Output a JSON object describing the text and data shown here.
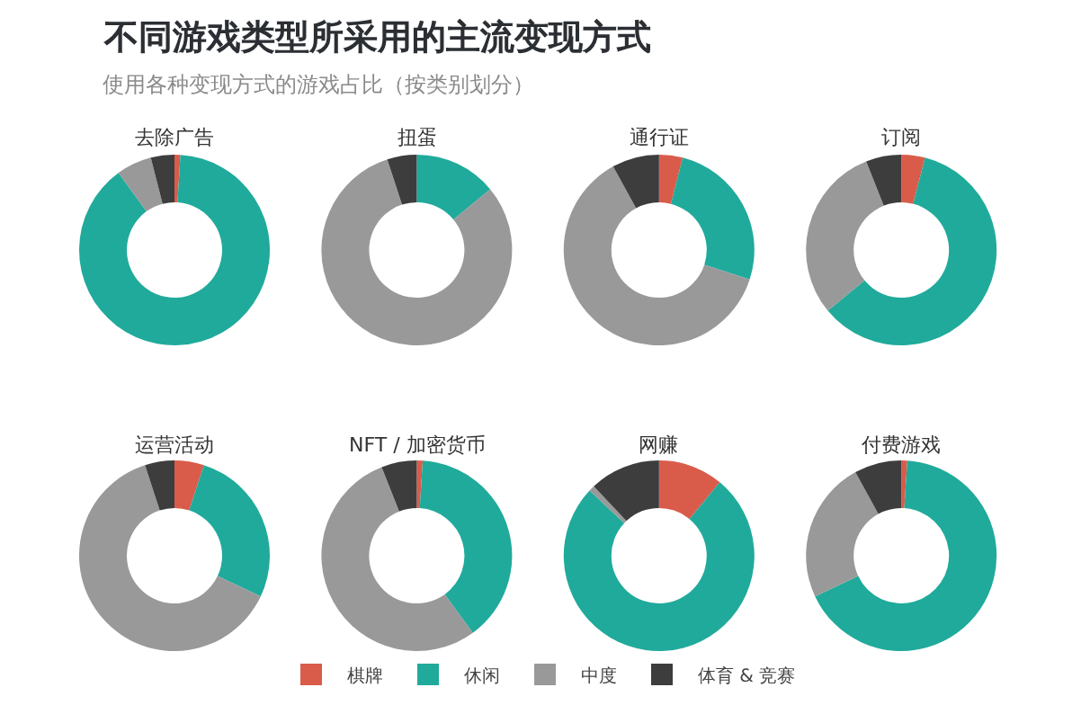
{
  "chart_data": {
    "type": "donut",
    "title": "不同游戏类型所采用的主流变现方式",
    "subtitle": "使用各种变现方式的游戏占比（按类别划分）",
    "categories": [
      "棋牌",
      "休闲",
      "中度",
      "体育 & 竞赛"
    ],
    "colors": [
      "#d95c4b",
      "#20aa9b",
      "#999999",
      "#3d3d3d"
    ],
    "legend": "bottom",
    "series": [
      {
        "name": "去除广告",
        "values": [
          1,
          89,
          6,
          4
        ]
      },
      {
        "name": "扭蛋",
        "values": [
          0,
          14,
          81,
          5
        ]
      },
      {
        "name": "通行证",
        "values": [
          4,
          26,
          62,
          8
        ]
      },
      {
        "name": "订阅",
        "values": [
          4,
          60,
          30,
          6
        ]
      },
      {
        "name": "运营活动",
        "values": [
          5,
          27,
          63,
          5
        ]
      },
      {
        "name": "NFT / 加密货币",
        "values": [
          1,
          39,
          54,
          6
        ]
      },
      {
        "name": "网赚",
        "values": [
          11,
          76,
          1,
          12
        ]
      },
      {
        "name": "付费游戏",
        "values": [
          1,
          67,
          24,
          8
        ]
      }
    ]
  }
}
